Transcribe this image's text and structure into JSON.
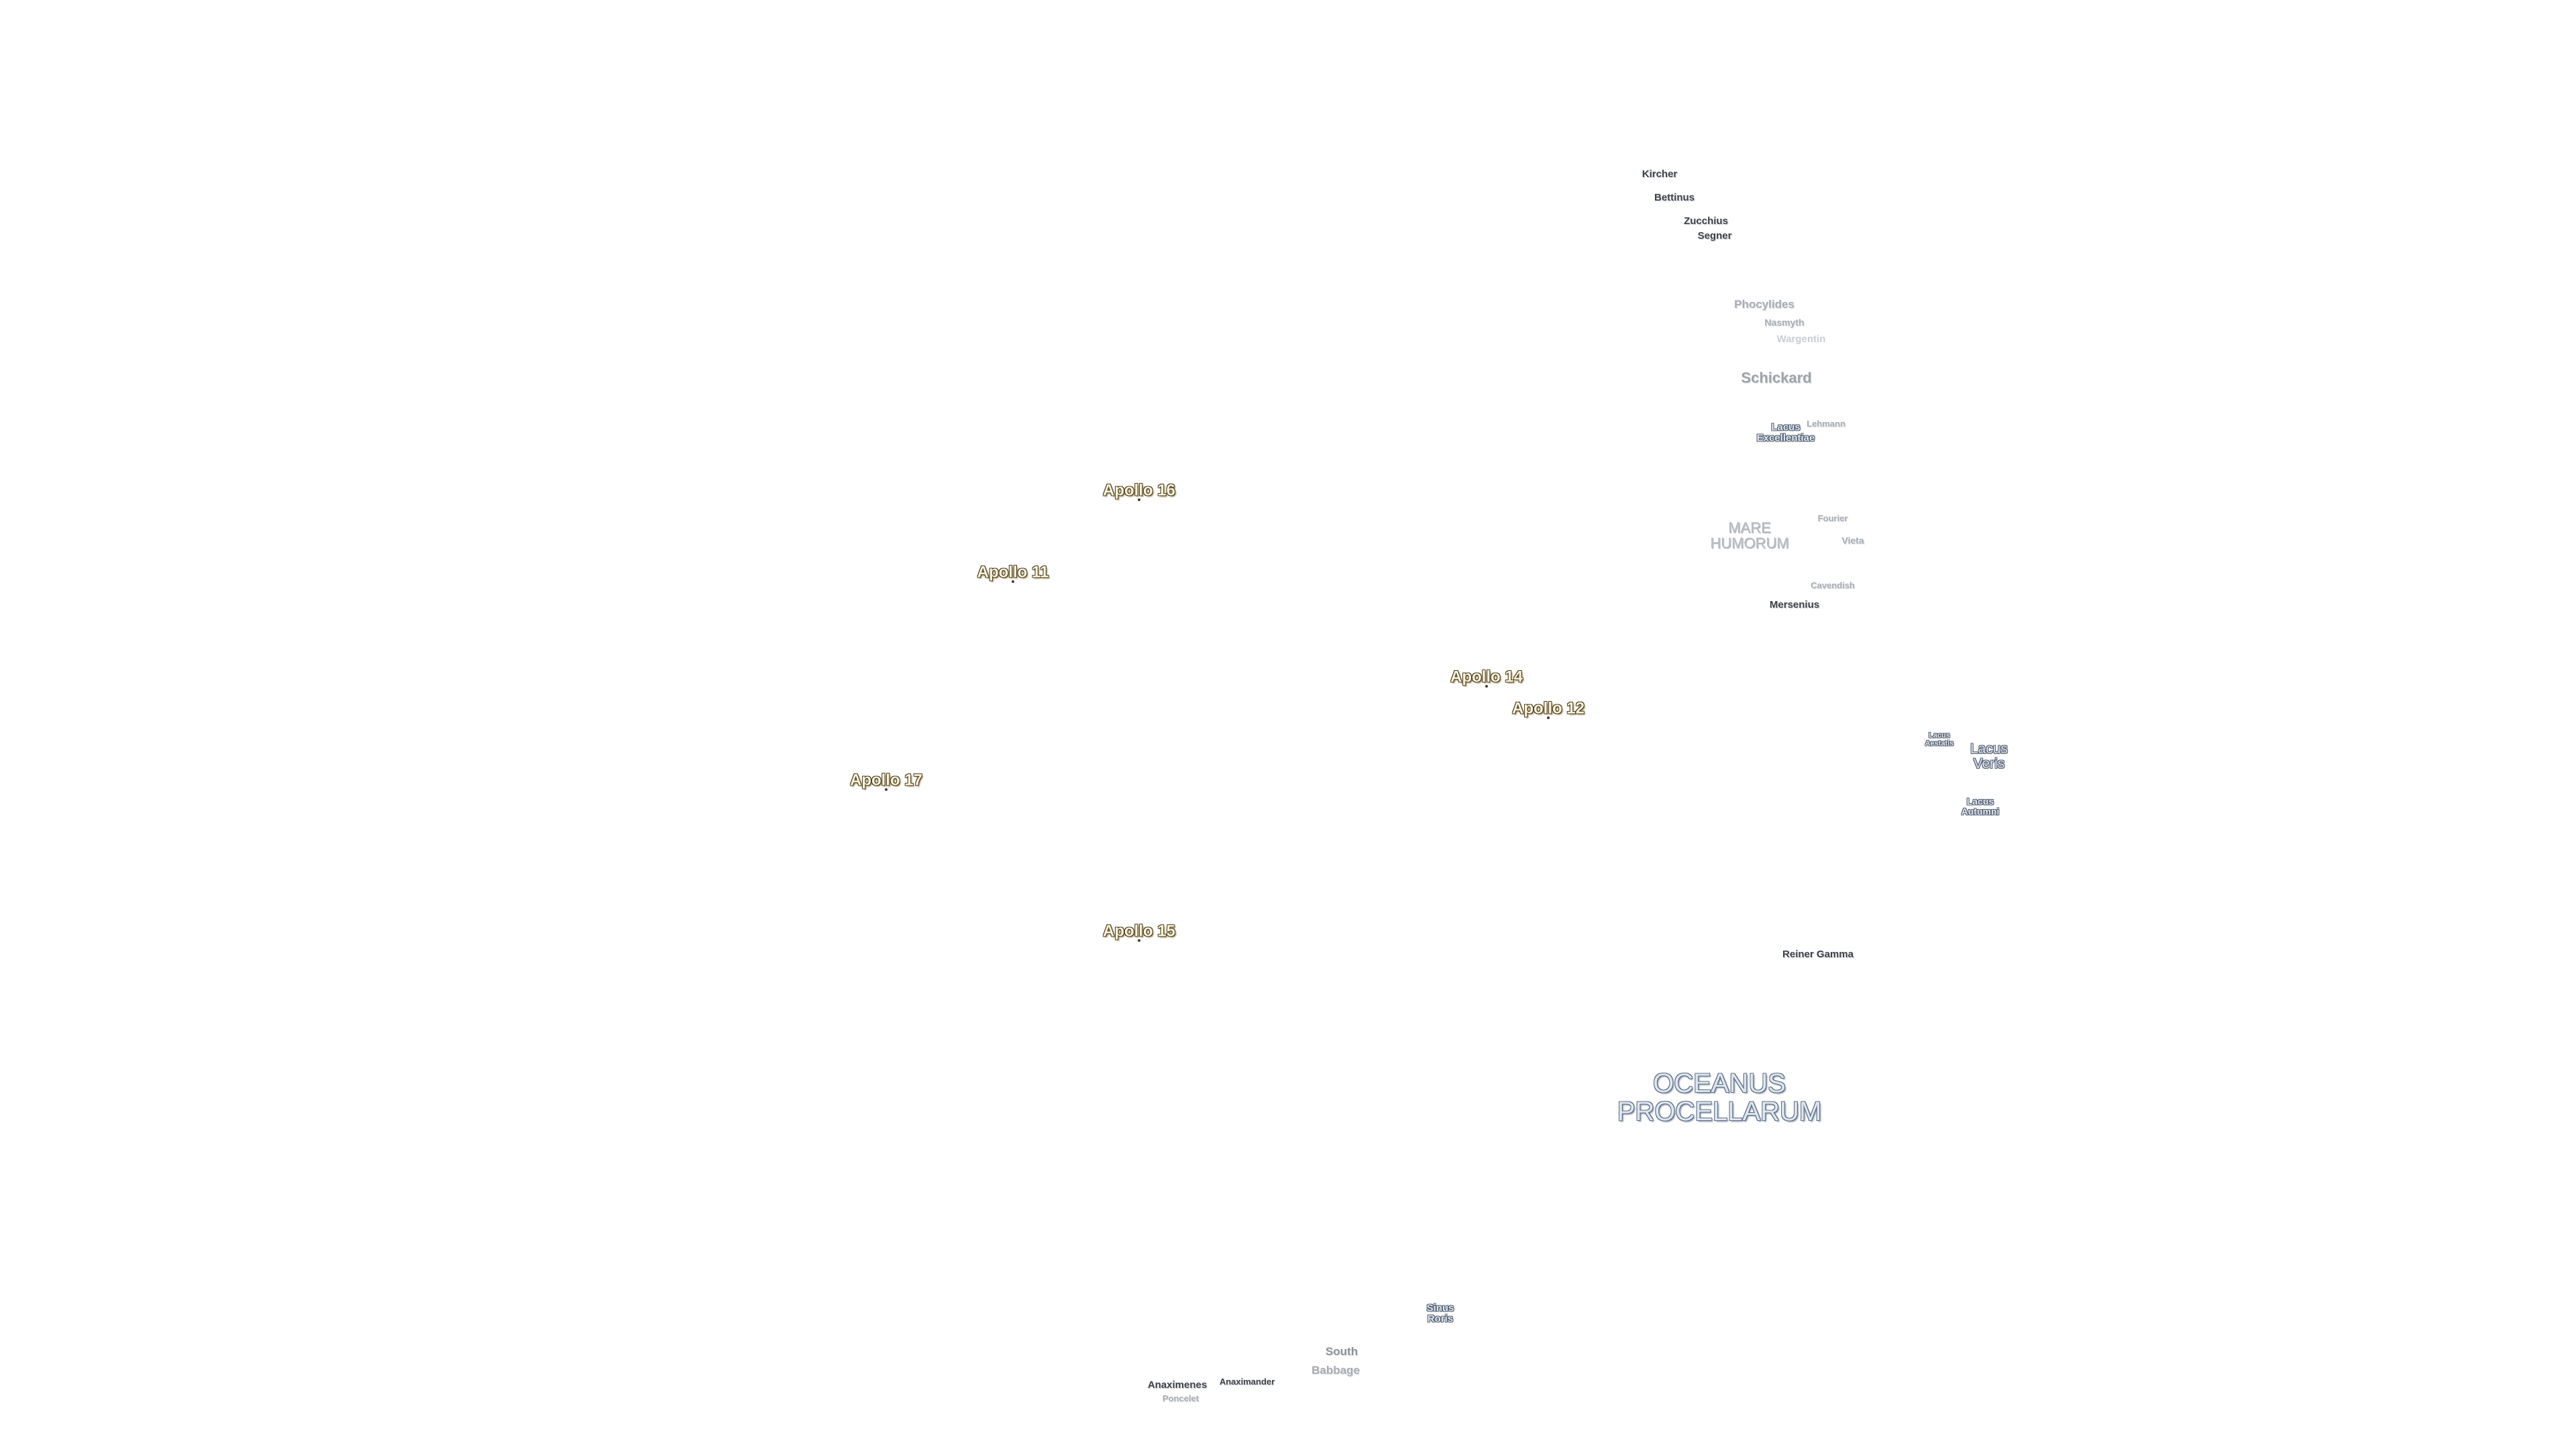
{
  "labels": [
    "Kircher",
    "Bettinus",
    "Zucchius",
    "Segner",
    "Phocylides",
    "Nasmyth",
    "Wargentin",
    "Schickard",
    "Lacus Excellentiae",
    "Lehmann",
    "MARE HUMORUM",
    "Fourier",
    "Vieta",
    "Cavendish",
    "Mersenius",
    "Apollo 16",
    "Apollo 11",
    "Apollo 14",
    "Apollo 12",
    "Apollo 17",
    "Apollo 15",
    "Lacus Aestatis",
    "Lacus Veris",
    "Lacus Autumni",
    "Reiner Gamma",
    "OCEANUS PROCELLARUM",
    "Sinus Roris",
    "South",
    "Babbage",
    "Anaximenes",
    "Anaximander",
    "Poncelet"
  ]
}
